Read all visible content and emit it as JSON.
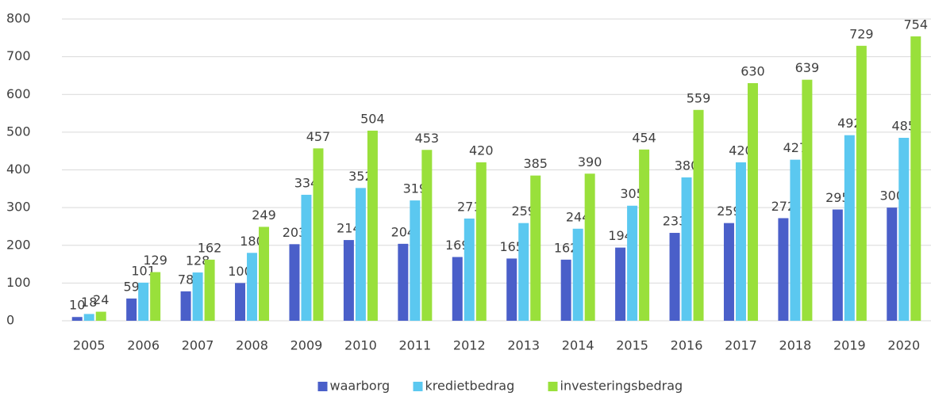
{
  "chart_data": {
    "type": "bar",
    "categories": [
      "2005",
      "2006",
      "2007",
      "2008",
      "2009",
      "2010",
      "2011",
      "2012",
      "2013",
      "2014",
      "2015",
      "2016",
      "2017",
      "2018",
      "2019",
      "2020"
    ],
    "series": [
      {
        "name": "waarborg",
        "color": "#4a5fc9",
        "values": [
          10,
          59,
          78,
          100,
          203,
          214,
          204,
          169,
          165,
          162,
          194,
          233,
          259,
          272,
          295,
          300
        ]
      },
      {
        "name": "kredietbedrag",
        "color": "#5bc8f0",
        "values": [
          18,
          101,
          128,
          180,
          334,
          352,
          319,
          271,
          259,
          244,
          305,
          380,
          420,
          427,
          492,
          485
        ]
      },
      {
        "name": "investeringsbedrag",
        "color": "#99e03b",
        "values": [
          24,
          129,
          162,
          249,
          457,
          504,
          453,
          420,
          385,
          390,
          454,
          559,
          630,
          639,
          729,
          754
        ]
      }
    ],
    "ylim": [
      0,
      800
    ],
    "yticks": [
      0,
      100,
      200,
      300,
      400,
      500,
      600,
      700,
      800
    ],
    "grid": true,
    "legend": "bottom"
  }
}
